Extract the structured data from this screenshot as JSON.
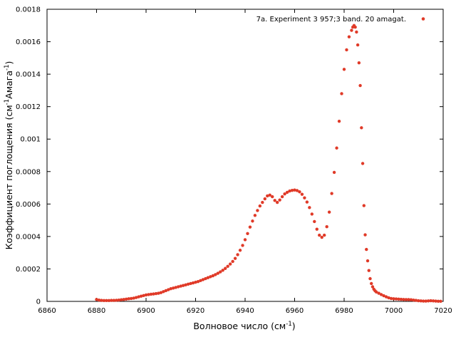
{
  "chart_data": {
    "type": "scatter",
    "xlabel": "Волновое число (см",
    "xlabel_sup": "-1",
    "xlabel_end": ")",
    "ylabel_pre": "Коэффициент поглощения (см",
    "ylabel_sup1": "-1",
    "ylabel_mid": "Амага",
    "ylabel_sup2": "-1",
    "ylabel_end": ")",
    "xlim": [
      6860,
      7020
    ],
    "ylim": [
      0,
      0.0018
    ],
    "x_ticks": [
      6860,
      6880,
      6900,
      6920,
      6940,
      6960,
      6980,
      7000,
      7020
    ],
    "y_ticks": [
      0,
      0.0002,
      0.0004,
      0.0006,
      0.0008,
      0.001,
      0.0012,
      0.0014,
      0.0016,
      0.0018
    ],
    "x_tick_labels": [
      "6860",
      "6880",
      "6900",
      "6920",
      "6940",
      "6960",
      "6980",
      "7000",
      "7020"
    ],
    "y_tick_labels": [
      "0",
      "0.0002",
      "0.0004",
      "0.0006",
      "0.0008",
      "0.001",
      "0.0012",
      "0.0014",
      "0.0016",
      "0.0018"
    ],
    "legend_position": "top-right",
    "series": [
      {
        "name": "7a. Experiment  3  957;3 band. 20 amagat.",
        "color": "#e03a28",
        "x": [
          6880,
          6881,
          6882,
          6883,
          6884,
          6885,
          6886,
          6887,
          6888,
          6889,
          6890,
          6891,
          6892,
          6893,
          6894,
          6895,
          6896,
          6897,
          6898,
          6899,
          6900,
          6901,
          6902,
          6903,
          6904,
          6905,
          6906,
          6907,
          6908,
          6909,
          6910,
          6911,
          6912,
          6913,
          6914,
          6915,
          6916,
          6917,
          6918,
          6919,
          6920,
          6921,
          6922,
          6923,
          6924,
          6925,
          6926,
          6927,
          6928,
          6929,
          6930,
          6931,
          6932,
          6933,
          6934,
          6935,
          6936,
          6937,
          6938,
          6939,
          6940,
          6941,
          6942,
          6943,
          6944,
          6945,
          6946,
          6947,
          6948,
          6949,
          6950,
          6951,
          6952,
          6953,
          6954,
          6955,
          6956,
          6957,
          6958,
          6959,
          6960,
          6961,
          6962,
          6963,
          6964,
          6965,
          6966,
          6967,
          6968,
          6969,
          6970,
          6971,
          6972,
          6973,
          6974,
          6975,
          6976,
          6977,
          6978,
          6979,
          6980,
          6981,
          6982,
          6983,
          6983.5,
          6984,
          6984.5,
          6985,
          6985.5,
          6986,
          6986.5,
          6987,
          6987.5,
          6988,
          6988.5,
          6989,
          6989.5,
          6990,
          6990.5,
          6991,
          6991.5,
          6992,
          6992.5,
          6993,
          6994,
          6995,
          6996,
          6997,
          6998,
          6999,
          7000,
          7001,
          7002,
          7003,
          7004,
          7005,
          7006,
          7007,
          7008,
          7009,
          7010,
          7011,
          7012,
          7013,
          7014,
          7015,
          7016,
          7017,
          7018,
          7019
        ],
        "y": [
          1.2e-05,
          8e-06,
          6e-06,
          5e-06,
          5e-06,
          5e-06,
          6e-06,
          6e-06,
          7e-06,
          8e-06,
          1e-05,
          1.2e-05,
          1.4e-05,
          1.6e-05,
          1.8e-05,
          2e-05,
          2.4e-05,
          2.8e-05,
          3.2e-05,
          3.6e-05,
          4e-05,
          4.2e-05,
          4.4e-05,
          4.6e-05,
          4.8e-05,
          5e-05,
          5.4e-05,
          6e-05,
          6.6e-05,
          7.2e-05,
          7.8e-05,
          8.2e-05,
          8.6e-05,
          9e-05,
          9.4e-05,
          9.8e-05,
          0.000102,
          0.000106,
          0.00011,
          0.000114,
          0.000118,
          0.000122,
          0.000128,
          0.000134,
          0.00014,
          0.000146,
          0.000152,
          0.000158,
          0.000165,
          0.000173,
          0.000182,
          0.000192,
          0.000203,
          0.000216,
          0.00023,
          0.000246,
          0.000265,
          0.000288,
          0.000315,
          0.000345,
          0.00038,
          0.000418,
          0.000458,
          0.000495,
          0.00053,
          0.00056,
          0.000588,
          0.00061,
          0.000632,
          0.00065,
          0.000655,
          0.000645,
          0.000622,
          0.00061,
          0.000625,
          0.000645,
          0.000662,
          0.000672,
          0.00068,
          0.000684,
          0.000686,
          0.000683,
          0.000675,
          0.00066,
          0.000638,
          0.000612,
          0.000578,
          0.000538,
          0.000492,
          0.000445,
          0.000408,
          0.000395,
          0.000408,
          0.00046,
          0.00055,
          0.000665,
          0.000795,
          0.000945,
          0.00111,
          0.00128,
          0.00143,
          0.00155,
          0.00163,
          0.00167,
          0.00169,
          0.0017,
          0.00169,
          0.00166,
          0.00158,
          0.00147,
          0.00133,
          0.00107,
          0.00085,
          0.00059,
          0.00041,
          0.00032,
          0.00025,
          0.00019,
          0.00014,
          0.00011,
          9e-05,
          7.5e-05,
          6.5e-05,
          5.8e-05,
          5e-05,
          4.2e-05,
          3.5e-05,
          2.8e-05,
          2.2e-05,
          1.8e-05,
          1.6e-05,
          1.5e-05,
          1.4e-05,
          1.3e-05,
          1.2e-05,
          1.1e-05,
          1.1e-05,
          1e-05,
          8e-06,
          6e-06,
          4e-06,
          3e-06,
          2e-06,
          2e-06,
          3e-06,
          4e-06,
          3e-06,
          2e-06,
          1e-06,
          1e-06
        ]
      }
    ]
  }
}
